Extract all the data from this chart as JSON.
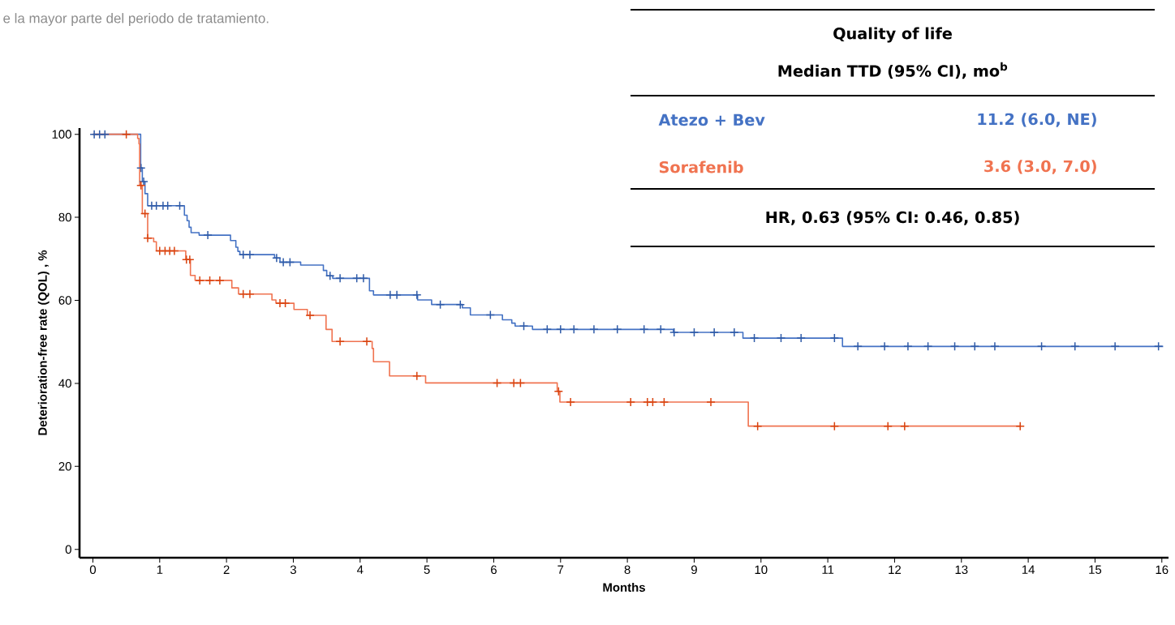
{
  "chart_data": {
    "type": "step",
    "xlabel": "Months",
    "ylabel": "Deterioration-free rate (QOL) , %",
    "xlim": [
      -0.2,
      16.1
    ],
    "ylim": [
      -2,
      101.5
    ],
    "xticks": [
      0,
      1,
      2,
      3,
      4,
      5,
      6,
      7,
      8,
      9,
      10,
      11,
      12,
      13,
      14,
      15,
      16
    ],
    "yticks": [
      0,
      20,
      40,
      60,
      80,
      100
    ],
    "legend": "top right",
    "annotations": [
      "e la mayor parte del periodo de tratamiento.",
      "Quality of life",
      "Median TTD (95% CI), mo$^{b}$",
      "11.2 (6.0, NE)",
      "3.6 (3.0, 7.0)",
      "HR, 0.63 (95% CI: 0.46, 0.85)"
    ],
    "series": [
      {
        "name": "Atezo + Bev",
        "color": "#4472c4",
        "x": [
          0,
          0.715,
          0.74,
          0.78,
          0.82,
          1.37,
          1.41,
          1.44,
          1.47,
          1.59,
          2.06,
          2.14,
          2.17,
          2.2,
          2.72,
          2.8,
          3.11,
          3.45,
          3.5,
          3.59,
          4.14,
          4.2,
          4.86,
          5.07,
          5.53,
          5.65,
          6.13,
          6.27,
          6.32,
          6.58,
          8.69,
          9.73,
          11.22,
          16.02
        ],
        "values": [
          100,
          91.9,
          88.6,
          85.7,
          82.8,
          80.5,
          79.2,
          77.6,
          76.3,
          75.7,
          74.4,
          72.8,
          71.8,
          71.0,
          70.2,
          69.2,
          68.5,
          67.2,
          65.9,
          65.3,
          62.3,
          61.3,
          60.1,
          59.0,
          58.2,
          56.5,
          55.3,
          54.5,
          53.8,
          53.0,
          52.3,
          50.9,
          48.9,
          48.9
        ]
      },
      {
        "name": "Sorafenib",
        "color": "#f07350",
        "x": [
          0,
          0.67,
          0.69,
          0.7,
          0.74,
          0.82,
          0.91,
          0.95,
          1.39,
          1.46,
          1.53,
          2.08,
          2.18,
          2.68,
          2.74,
          3.01,
          3.21,
          3.49,
          3.58,
          4.18,
          4.2,
          4.44,
          4.98,
          6.95,
          6.99,
          9.81,
          13.88
        ],
        "values": [
          100,
          99.0,
          97.7,
          87.7,
          80.9,
          75.0,
          74.1,
          71.9,
          69.8,
          66.0,
          64.8,
          63.0,
          61.5,
          60.1,
          59.3,
          57.8,
          56.4,
          53.0,
          50.1,
          48.4,
          45.2,
          41.8,
          40.1,
          38.1,
          35.5,
          29.7,
          29.7
        ]
      },
      {
        "type": "scatter",
        "marker": "cross",
        "color": "#2f5ba8",
        "x": [
          0.02,
          0.1,
          0.18,
          0.72,
          0.76,
          0.88,
          0.95,
          1.05,
          1.12,
          1.3,
          1.72,
          2.25,
          2.35,
          2.75,
          2.85,
          2.95,
          3.55,
          3.7,
          3.95,
          4.05,
          4.45,
          4.55,
          4.85,
          5.2,
          5.5,
          5.95,
          6.45,
          6.8,
          7.0,
          7.2,
          7.5,
          7.85,
          8.25,
          8.5,
          8.7,
          9.0,
          9.3,
          9.6,
          9.9,
          10.3,
          10.6,
          11.1,
          11.45,
          11.85,
          12.2,
          12.5,
          12.9,
          13.2,
          13.5,
          14.2,
          14.7,
          15.3,
          15.95
        ],
        "values": [
          100,
          100,
          100,
          91.9,
          88.6,
          82.8,
          82.8,
          82.8,
          82.8,
          82.8,
          75.7,
          71.0,
          71.0,
          70.2,
          69.2,
          69.2,
          65.9,
          65.3,
          65.3,
          65.3,
          61.3,
          61.3,
          61.3,
          59.0,
          59.0,
          56.5,
          53.8,
          53.0,
          53.0,
          53.0,
          53.0,
          53.0,
          53.0,
          53.0,
          52.3,
          52.3,
          52.3,
          52.3,
          50.9,
          50.9,
          50.9,
          50.9,
          48.9,
          48.9,
          48.9,
          48.9,
          48.9,
          48.9,
          48.9,
          48.9,
          48.9,
          48.9,
          48.9
        ]
      },
      {
        "type": "scatter",
        "marker": "cross",
        "color": "#d9430f",
        "x": [
          0.5,
          0.72,
          0.78,
          0.82,
          1.0,
          1.08,
          1.15,
          1.22,
          1.4,
          1.45,
          1.6,
          1.75,
          1.9,
          2.25,
          2.35,
          2.8,
          2.88,
          3.25,
          3.7,
          4.1,
          4.85,
          6.05,
          6.3,
          6.4,
          6.97,
          7.15,
          8.05,
          8.3,
          8.38,
          8.55,
          9.25,
          9.95,
          11.1,
          11.9,
          12.15,
          13.88
        ],
        "values": [
          100,
          87.7,
          80.9,
          75.0,
          71.9,
          71.9,
          71.9,
          71.9,
          69.8,
          69.8,
          64.8,
          64.8,
          64.8,
          61.5,
          61.5,
          59.3,
          59.3,
          56.4,
          50.1,
          50.1,
          41.8,
          40.1,
          40.1,
          40.1,
          38.1,
          35.5,
          35.5,
          35.5,
          35.5,
          35.5,
          35.5,
          29.7,
          29.7,
          29.7,
          29.7,
          29.7
        ]
      }
    ]
  }
}
